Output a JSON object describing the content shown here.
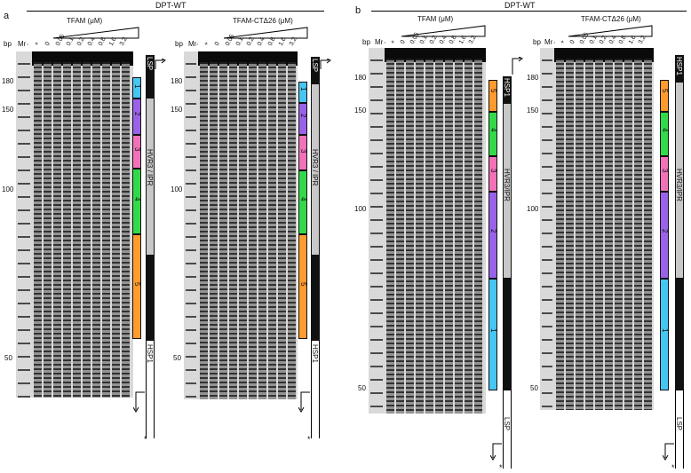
{
  "colors": {
    "seg1": "#46c6f2",
    "seg2": "#9a62e8",
    "seg3": "#f272b9",
    "seg4": "#34d94a",
    "seg5": "#ff9b2f",
    "gel_bg": "#d9d9d9",
    "band": "#1f1f1f"
  },
  "panel_a": {
    "letter": "a",
    "header": "DPT-WT",
    "left_title": "TFAM (μM)",
    "right_title": "TFAM-CTΔ26 (μM)",
    "bp_label": "bp",
    "mr_label": "Mr",
    "lanes": [
      "-",
      "+",
      "0",
      "0.05",
      "0.1",
      "0.2",
      "0.4",
      "0.8",
      "1.6",
      "3.2"
    ],
    "markers": [
      "180",
      "150",
      "100",
      "50"
    ],
    "seg_labels": [
      "1",
      "2",
      "3",
      "4",
      "5"
    ],
    "region_top": "LSP",
    "region_mid": "HVR3 / IPR",
    "region_bottom": "HSP1",
    "star": "*"
  },
  "panel_b": {
    "letter": "b",
    "header": "DPT-WT",
    "left_title": "TFAM (μM)",
    "right_title": "TFAM-CTΔ26 (μM)",
    "bp_label": "bp",
    "mr_label": "Mr",
    "lanes": [
      "-",
      "+",
      "0",
      "0.05",
      "0.1",
      "0.2",
      "0.4",
      "0.8",
      "1.6",
      "3.2"
    ],
    "markers": [
      "180",
      "150",
      "100",
      "50"
    ],
    "seg_labels": [
      "5",
      "4",
      "3",
      "2",
      "1"
    ],
    "region_top": "HSP1",
    "region_mid": "HVR3/IPR",
    "region_bottom": "LSP",
    "star": "*"
  }
}
